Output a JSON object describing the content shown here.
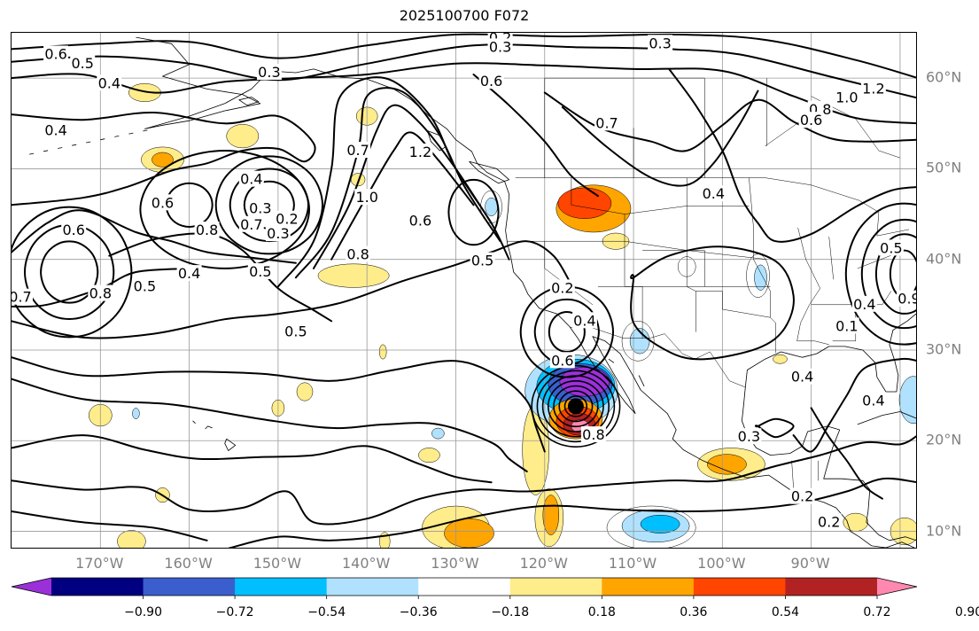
{
  "title": "2025100700 F072",
  "map": {
    "lon_range": [
      -180,
      -78
    ],
    "lat_range": [
      8,
      65
    ],
    "lon_labels": [
      "170°W",
      "160°W",
      "150°W",
      "140°W",
      "130°W",
      "120°W",
      "110°W",
      "100°W",
      "90°W"
    ],
    "lon_values": [
      -170,
      -160,
      -150,
      -140,
      -130,
      -120,
      -110,
      -100,
      -90
    ],
    "lat_labels": [
      "10°N",
      "20°N",
      "30°N",
      "40°N",
      "50°N",
      "60°N"
    ],
    "lat_values": [
      10,
      20,
      30,
      40,
      50,
      60
    ],
    "grid": true,
    "storm_center": {
      "lon": -116.5,
      "lat": 23.8
    },
    "contour_labels": [
      {
        "text": "0.6",
        "lon": -175,
        "lat": 62.6
      },
      {
        "text": "0.5",
        "lon": -172,
        "lat": 61.6
      },
      {
        "text": "0.4",
        "lon": -169,
        "lat": 59.4
      },
      {
        "text": "0.3",
        "lon": -151,
        "lat": 60.6
      },
      {
        "text": "0.4",
        "lon": -175,
        "lat": 54.2
      },
      {
        "text": "0.2",
        "lon": -125,
        "lat": 64.4
      },
      {
        "text": "0.3",
        "lon": -125,
        "lat": 63.4
      },
      {
        "text": "0.3",
        "lon": -107,
        "lat": 63.8
      },
      {
        "text": "0.6",
        "lon": -126,
        "lat": 59.6
      },
      {
        "text": "0.7",
        "lon": -113,
        "lat": 55.0
      },
      {
        "text": "1.2",
        "lon": -83,
        "lat": 58.8
      },
      {
        "text": "1.0",
        "lon": -86,
        "lat": 57.8
      },
      {
        "text": "0.8",
        "lon": -89,
        "lat": 56.5
      },
      {
        "text": "0.6",
        "lon": -90,
        "lat": 55.3
      },
      {
        "text": "0.7",
        "lon": -141,
        "lat": 52.0
      },
      {
        "text": "1.2",
        "lon": -134,
        "lat": 51.8
      },
      {
        "text": "1.0",
        "lon": -140,
        "lat": 46.8
      },
      {
        "text": "0.6",
        "lon": -134,
        "lat": 44.2
      },
      {
        "text": "0.8",
        "lon": -141,
        "lat": 40.5
      },
      {
        "text": "0.4",
        "lon": -153,
        "lat": 48.8
      },
      {
        "text": "0.3",
        "lon": -152,
        "lat": 45.6
      },
      {
        "text": "0.3",
        "lon": -150,
        "lat": 42.8
      },
      {
        "text": "0.2",
        "lon": -149,
        "lat": 44.4
      },
      {
        "text": "0.6",
        "lon": -163,
        "lat": 46.2
      },
      {
        "text": "0.8",
        "lon": -158,
        "lat": 43.2
      },
      {
        "text": "0.7",
        "lon": -153,
        "lat": 43.8
      },
      {
        "text": "0.6",
        "lon": -173,
        "lat": 43.2
      },
      {
        "text": "0.8",
        "lon": -170,
        "lat": 36.2
      },
      {
        "text": "0.7",
        "lon": -179,
        "lat": 35.8
      },
      {
        "text": "0.5",
        "lon": -165,
        "lat": 37.0
      },
      {
        "text": "0.4",
        "lon": -160,
        "lat": 38.4
      },
      {
        "text": "0.5",
        "lon": -152,
        "lat": 38.6
      },
      {
        "text": "0.5",
        "lon": -148,
        "lat": 32.0
      },
      {
        "text": "0.5",
        "lon": -127,
        "lat": 39.8
      },
      {
        "text": "0.4",
        "lon": -101,
        "lat": 47.2
      },
      {
        "text": "0.2",
        "lon": -118,
        "lat": 36.8
      },
      {
        "text": "0.4",
        "lon": -115.5,
        "lat": 33.2
      },
      {
        "text": "0.6",
        "lon": -118,
        "lat": 28.8
      },
      {
        "text": "0.4",
        "lon": -91,
        "lat": 27.0
      },
      {
        "text": "0.4",
        "lon": -84,
        "lat": 35.0
      },
      {
        "text": "0.1",
        "lon": -86,
        "lat": 32.6
      },
      {
        "text": "0.5",
        "lon": -81,
        "lat": 41.2
      },
      {
        "text": "0.9",
        "lon": -79,
        "lat": 35.6
      },
      {
        "text": "0.4",
        "lon": -83,
        "lat": 24.4
      },
      {
        "text": "0.3",
        "lon": -97,
        "lat": 20.4
      },
      {
        "text": "0.2",
        "lon": -91,
        "lat": 13.8
      },
      {
        "text": "0.2",
        "lon": -88,
        "lat": 11.0
      },
      {
        "text": "0.8",
        "lon": -114.5,
        "lat": 20.6
      }
    ],
    "fills": [
      {
        "type": "ellipse",
        "lon": -114.5,
        "lat": 45.6,
        "rlon": 4.2,
        "rlat": 2.6,
        "level": 0.36
      },
      {
        "type": "ellipse",
        "lon": -115.5,
        "lat": 46.2,
        "rlon": 3.0,
        "rlat": 1.7,
        "level": 0.54
      },
      {
        "type": "ellipse",
        "lon": -112,
        "lat": 42.0,
        "rlon": 1.5,
        "rlat": 0.9,
        "level": 0.18
      },
      {
        "type": "ellipse",
        "lon": -163,
        "lat": 51.0,
        "rlon": 2.4,
        "rlat": 1.4,
        "level": 0.18
      },
      {
        "type": "ellipse",
        "lon": -163,
        "lat": 51.0,
        "rlon": 1.2,
        "rlat": 0.8,
        "level": 0.36
      },
      {
        "type": "ellipse",
        "lon": -165,
        "lat": 58.4,
        "rlon": 1.8,
        "rlat": 1.0,
        "level": 0.18
      },
      {
        "type": "ellipse",
        "lon": -154,
        "lat": 53.6,
        "rlon": 1.8,
        "rlat": 1.3,
        "level": 0.18
      },
      {
        "type": "ellipse",
        "lon": -140,
        "lat": 55.8,
        "rlon": 1.2,
        "rlat": 1.0,
        "level": 0.18
      },
      {
        "type": "ellipse",
        "lon": -141.5,
        "lat": 38.2,
        "rlon": 4.0,
        "rlat": 1.3,
        "level": 0.18
      },
      {
        "type": "ellipse",
        "lon": -170,
        "lat": 22.8,
        "rlon": 1.3,
        "rlat": 1.2,
        "level": 0.18
      },
      {
        "type": "ellipse",
        "lon": -150,
        "lat": 23.6,
        "rlon": 0.7,
        "rlat": 0.9,
        "level": 0.18
      },
      {
        "type": "ellipse",
        "lon": -147,
        "lat": 25.4,
        "rlon": 0.9,
        "rlat": 1.0,
        "level": 0.18
      },
      {
        "type": "ellipse",
        "lon": -133,
        "lat": 18.4,
        "rlon": 1.2,
        "rlat": 0.8,
        "level": 0.18
      },
      {
        "type": "ellipse",
        "lon": -163,
        "lat": 14.0,
        "rlon": 0.8,
        "rlat": 0.8,
        "level": 0.18
      },
      {
        "type": "ellipse",
        "lon": -166.5,
        "lat": 8.9,
        "rlon": 1.6,
        "rlat": 1.2,
        "level": 0.18
      },
      {
        "type": "ellipse",
        "lon": -130,
        "lat": 10.4,
        "rlon": 3.8,
        "rlat": 2.4,
        "level": 0.18
      },
      {
        "type": "ellipse",
        "lon": -128.5,
        "lat": 9.8,
        "rlon": 2.8,
        "rlat": 1.6,
        "level": 0.36
      },
      {
        "type": "ellipse",
        "lon": -121,
        "lat": 19.0,
        "rlon": 1.5,
        "rlat": 5.0,
        "level": 0.18
      },
      {
        "type": "ellipse",
        "lon": -119.5,
        "lat": 11.5,
        "rlon": 1.6,
        "rlat": 3.2,
        "level": 0.18
      },
      {
        "type": "ellipse",
        "lon": -119.3,
        "lat": 11.8,
        "rlon": 0.9,
        "rlat": 2.2,
        "level": 0.36
      },
      {
        "type": "ellipse",
        "lon": -99,
        "lat": 17.4,
        "rlon": 3.8,
        "rlat": 1.8,
        "level": 0.18
      },
      {
        "type": "ellipse",
        "lon": -99.5,
        "lat": 17.4,
        "rlon": 2.2,
        "rlat": 1.1,
        "level": 0.36
      },
      {
        "type": "ellipse",
        "lon": -85,
        "lat": 11.0,
        "rlon": 1.4,
        "rlat": 1.0,
        "level": 0.18
      },
      {
        "type": "ellipse",
        "lon": -79.5,
        "lat": 10.0,
        "rlon": 1.6,
        "rlat": 1.5,
        "level": 0.18
      },
      {
        "type": "ellipse",
        "lon": -93.5,
        "lat": 29.0,
        "rlon": 0.8,
        "rlat": 0.5,
        "level": 0.18
      },
      {
        "type": "ellipse",
        "lon": -138.2,
        "lat": 29.8,
        "rlon": 0.4,
        "rlat": 0.8,
        "level": 0.18
      },
      {
        "type": "ellipse",
        "lon": -138,
        "lat": 8.9,
        "rlon": 0.6,
        "rlat": 1.0,
        "level": 0.18
      },
      {
        "type": "ellipse",
        "lon": -141,
        "lat": 48.8,
        "rlon": 0.8,
        "rlat": 0.7,
        "level": 0.18
      },
      {
        "type": "ellipse",
        "lon": -117,
        "lat": 25.5,
        "rlon": 5.2,
        "rlat": 4.0,
        "level": -0.36
      },
      {
        "type": "ellipse",
        "lon": -116.5,
        "lat": 26.0,
        "rlon": 4.4,
        "rlat": 3.0,
        "level": -0.54
      },
      {
        "type": "ellipse",
        "lon": -116.0,
        "lat": 26.2,
        "rlon": 3.6,
        "rlat": 2.3,
        "level": -0.72
      },
      {
        "type": "ellipse",
        "lon": -115.5,
        "lat": 26.5,
        "rlon": 2.8,
        "rlat": 1.6,
        "level": -0.9
      },
      {
        "type": "ellipse",
        "lon": -116.5,
        "lat": 22.4,
        "rlon": 3.0,
        "rlat": 2.2,
        "level": 0.36
      },
      {
        "type": "ellipse",
        "lon": -116.3,
        "lat": 22.1,
        "rlon": 2.4,
        "rlat": 1.7,
        "level": 0.54
      },
      {
        "type": "ellipse",
        "lon": -116.1,
        "lat": 21.8,
        "rlon": 1.8,
        "rlat": 1.2,
        "level": 0.72
      },
      {
        "type": "ellipse",
        "lon": -116.0,
        "lat": 21.6,
        "rlon": 1.0,
        "rlat": 0.7,
        "level": 0.9
      },
      {
        "type": "ellipse",
        "lon": -109.5,
        "lat": 31.0,
        "rlon": 1.8,
        "rlat": 2.2,
        "level": -0.18
      },
      {
        "type": "ellipse",
        "lon": -109.3,
        "lat": 31.0,
        "rlon": 1.1,
        "rlat": 1.4,
        "level": -0.36
      },
      {
        "type": "ellipse",
        "lon": -108,
        "lat": 10.4,
        "rlon": 5.0,
        "rlat": 2.4,
        "level": -0.18
      },
      {
        "type": "ellipse",
        "lon": -107.5,
        "lat": 10.6,
        "rlon": 3.8,
        "rlat": 1.8,
        "level": -0.36
      },
      {
        "type": "ellipse",
        "lon": -107.0,
        "lat": 10.8,
        "rlon": 2.2,
        "rlat": 1.0,
        "level": -0.54
      },
      {
        "type": "ellipse",
        "lon": -126,
        "lat": 45.8,
        "rlon": 1.2,
        "rlat": 1.8,
        "level": -0.18
      },
      {
        "type": "ellipse",
        "lon": -126,
        "lat": 45.8,
        "rlon": 0.7,
        "rlat": 1.0,
        "level": -0.36
      },
      {
        "type": "ellipse",
        "lon": -96,
        "lat": 38.2,
        "rlon": 1.3,
        "rlat": 2.4,
        "level": -0.18
      },
      {
        "type": "ellipse",
        "lon": -95.7,
        "lat": 38.0,
        "rlon": 0.7,
        "rlat": 1.4,
        "level": -0.36
      },
      {
        "type": "ellipse",
        "lon": -104,
        "lat": 39.2,
        "rlon": 1.0,
        "rlat": 1.1,
        "level": -0.18
      },
      {
        "type": "ellipse",
        "lon": -132,
        "lat": 20.8,
        "rlon": 0.7,
        "rlat": 0.6,
        "level": -0.36
      },
      {
        "type": "ellipse",
        "lon": -78.5,
        "lat": 24.5,
        "rlon": 1.6,
        "rlat": 2.6,
        "level": -0.36
      },
      {
        "type": "ellipse",
        "lon": -166,
        "lat": 23.0,
        "rlon": 0.4,
        "rlat": 0.6,
        "level": -0.36
      }
    ]
  },
  "colorbar": {
    "tick_labels": [
      "−0.90",
      "−0.72",
      "−0.54",
      "−0.36",
      "−0.18",
      "0.18",
      "0.36",
      "0.54",
      "0.72",
      "0.90"
    ],
    "levels": [
      -0.9,
      -0.72,
      -0.54,
      -0.36,
      -0.18,
      0.18,
      0.36,
      0.54,
      0.72,
      0.9
    ],
    "colors": [
      "#9b30d9",
      "#000080",
      "#3a5fcd",
      "#00bfff",
      "#b0e2ff",
      "#ffffff",
      "#ffec8b",
      "#ffa500",
      "#ff4500",
      "#b22222",
      "#ff88b0"
    ]
  }
}
